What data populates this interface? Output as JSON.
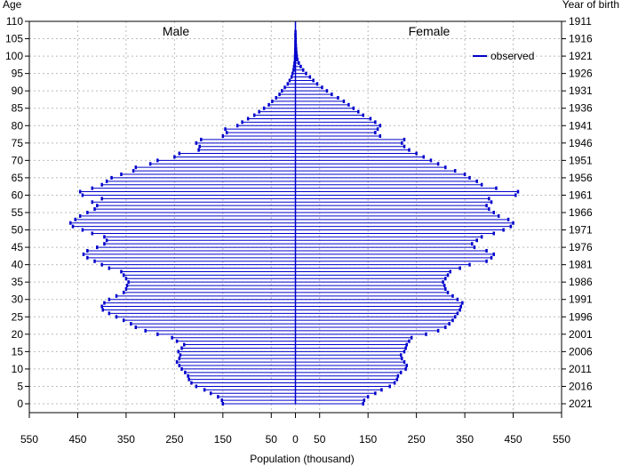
{
  "chart_data": {
    "type": "bar",
    "orientation": "horizontal-pyramid",
    "y_title_left": "Age",
    "y_title_right": "Year of birth",
    "xlabel": "Population (thousand)",
    "x_ticks_left": [
      "550",
      "450",
      "350",
      "250",
      "150",
      "50"
    ],
    "x_ticks_right": [
      "0",
      "50",
      "150",
      "250",
      "350",
      "450",
      "550"
    ],
    "xlim": [
      -550,
      550
    ],
    "ylim": [
      0,
      110
    ],
    "age_ticks": [
      "0",
      "5",
      "10",
      "15",
      "20",
      "25",
      "30",
      "35",
      "40",
      "45",
      "50",
      "55",
      "60",
      "65",
      "70",
      "75",
      "80",
      "85",
      "90",
      "95",
      "100",
      "105",
      "110"
    ],
    "year_ticks": [
      "2021",
      "2016",
      "2011",
      "2006",
      "2001",
      "1996",
      "1991",
      "1986",
      "1981",
      "1976",
      "1971",
      "1966",
      "1961",
      "1956",
      "1951",
      "1946",
      "1941",
      "1936",
      "1931",
      "1926",
      "1921",
      "1916",
      "1911"
    ],
    "grid": true,
    "legend_position": "top-right",
    "series_color": "#0000cc",
    "series": [
      {
        "name": "Male",
        "label": "Male"
      },
      {
        "name": "Female",
        "label": "Female"
      }
    ],
    "legend_label": "observed",
    "ages": [
      0,
      1,
      2,
      3,
      4,
      5,
      6,
      7,
      8,
      9,
      10,
      11,
      12,
      13,
      14,
      15,
      16,
      17,
      18,
      19,
      20,
      21,
      22,
      23,
      24,
      25,
      26,
      27,
      28,
      29,
      30,
      31,
      32,
      33,
      34,
      35,
      36,
      37,
      38,
      39,
      40,
      41,
      42,
      43,
      44,
      45,
      46,
      47,
      48,
      49,
      50,
      51,
      52,
      53,
      54,
      55,
      56,
      57,
      58,
      59,
      60,
      61,
      62,
      63,
      64,
      65,
      66,
      67,
      68,
      69,
      70,
      71,
      72,
      73,
      74,
      75,
      76,
      77,
      78,
      79,
      80,
      81,
      82,
      83,
      84,
      85,
      86,
      87,
      88,
      89,
      90,
      91,
      92,
      93,
      94,
      95,
      96,
      97,
      98,
      99,
      100,
      101,
      102,
      103,
      104,
      105,
      106,
      107,
      108,
      109,
      110
    ],
    "male": [
      150,
      152,
      160,
      175,
      188,
      205,
      215,
      220,
      222,
      228,
      235,
      240,
      245,
      240,
      238,
      242,
      235,
      230,
      245,
      255,
      285,
      310,
      330,
      340,
      355,
      370,
      385,
      398,
      400,
      395,
      385,
      370,
      355,
      350,
      348,
      345,
      350,
      355,
      360,
      385,
      400,
      415,
      430,
      438,
      430,
      410,
      395,
      390,
      395,
      420,
      440,
      460,
      465,
      455,
      445,
      430,
      415,
      410,
      420,
      400,
      440,
      445,
      420,
      400,
      390,
      380,
      360,
      335,
      330,
      300,
      285,
      250,
      240,
      200,
      198,
      205,
      195,
      150,
      142,
      145,
      120,
      110,
      98,
      85,
      75,
      65,
      55,
      48,
      40,
      33,
      28,
      22,
      16,
      12,
      8,
      6,
      4,
      3,
      2,
      1,
      1,
      0.5,
      0.4,
      0.3,
      0.2,
      0.1,
      0.1,
      0,
      0,
      0,
      0
    ],
    "female": [
      140,
      142,
      150,
      165,
      178,
      195,
      205,
      210,
      212,
      218,
      228,
      230,
      225,
      220,
      218,
      225,
      228,
      230,
      235,
      240,
      270,
      295,
      310,
      318,
      325,
      330,
      335,
      340,
      342,
      345,
      335,
      325,
      315,
      310,
      308,
      305,
      310,
      315,
      320,
      340,
      360,
      395,
      405,
      410,
      395,
      370,
      365,
      375,
      385,
      410,
      430,
      445,
      450,
      440,
      420,
      410,
      400,
      395,
      405,
      400,
      455,
      460,
      415,
      385,
      375,
      360,
      350,
      330,
      310,
      295,
      280,
      265,
      250,
      235,
      225,
      220,
      225,
      175,
      165,
      170,
      175,
      165,
      155,
      140,
      130,
      120,
      110,
      100,
      88,
      75,
      65,
      55,
      45,
      37,
      30,
      22,
      16,
      11,
      7,
      4,
      3,
      2,
      1.5,
      1,
      0.6,
      0.4,
      0.2,
      0.1,
      0,
      0,
      0
    ]
  }
}
